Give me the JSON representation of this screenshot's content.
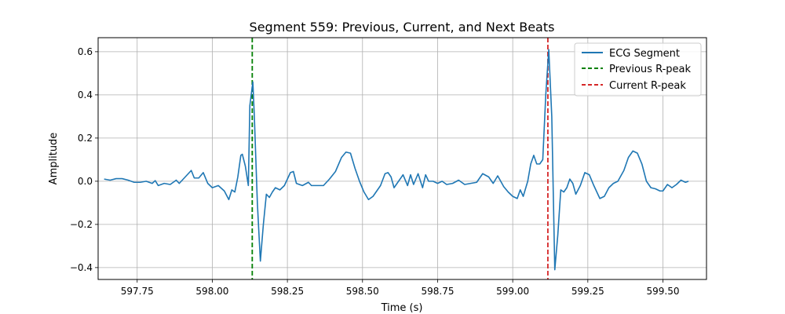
{
  "chart_data": {
    "type": "line",
    "title": "Segment 559: Previous, Current, and Next Beats",
    "xlabel": "Time (s)",
    "ylabel": "Amplitude",
    "xlim": [
      597.62,
      599.645
    ],
    "ylim": [
      -0.455,
      0.665
    ],
    "grid": true,
    "legend_position": "top-right",
    "xticks": [
      597.75,
      598.0,
      598.25,
      598.5,
      598.75,
      599.0,
      599.25,
      599.5
    ],
    "xtick_labels": [
      "597.75",
      "598.00",
      "598.25",
      "598.50",
      "598.75",
      "599.00",
      "599.25",
      "599.50"
    ],
    "yticks": [
      -0.4,
      -0.2,
      0.0,
      0.2,
      0.4,
      0.6
    ],
    "ytick_labels": [
      "−0.4",
      "−0.2",
      "0.0",
      "0.2",
      "0.4",
      "0.6"
    ],
    "series": [
      {
        "name": "ECG Segment",
        "color": "#1f77b4",
        "points": [
          [
            597.64,
            0.01
          ],
          [
            597.66,
            0.005
          ],
          [
            597.68,
            0.012
          ],
          [
            597.7,
            0.012
          ],
          [
            597.72,
            0.005
          ],
          [
            597.74,
            -0.005
          ],
          [
            597.76,
            -0.005
          ],
          [
            597.78,
            0.0
          ],
          [
            597.8,
            -0.01
          ],
          [
            597.81,
            0.003
          ],
          [
            597.82,
            -0.02
          ],
          [
            597.84,
            -0.01
          ],
          [
            597.86,
            -0.015
          ],
          [
            597.88,
            0.005
          ],
          [
            597.89,
            -0.01
          ],
          [
            597.91,
            0.02
          ],
          [
            597.93,
            0.05
          ],
          [
            597.94,
            0.015
          ],
          [
            597.955,
            0.015
          ],
          [
            597.97,
            0.04
          ],
          [
            597.985,
            -0.01
          ],
          [
            598.0,
            -0.03
          ],
          [
            598.02,
            -0.02
          ],
          [
            598.04,
            -0.045
          ],
          [
            598.055,
            -0.085
          ],
          [
            598.065,
            -0.04
          ],
          [
            598.075,
            -0.05
          ],
          [
            598.085,
            0.02
          ],
          [
            598.095,
            0.12
          ],
          [
            598.1,
            0.125
          ],
          [
            598.11,
            0.07
          ],
          [
            598.12,
            -0.02
          ],
          [
            598.125,
            0.35
          ],
          [
            598.135,
            0.46
          ],
          [
            598.14,
            0.3
          ],
          [
            598.15,
            -0.1
          ],
          [
            598.16,
            -0.37
          ],
          [
            598.17,
            -0.2
          ],
          [
            598.18,
            -0.06
          ],
          [
            598.19,
            -0.075
          ],
          [
            598.2,
            -0.05
          ],
          [
            598.21,
            -0.03
          ],
          [
            598.225,
            -0.04
          ],
          [
            598.24,
            -0.02
          ],
          [
            598.26,
            0.04
          ],
          [
            598.27,
            0.045
          ],
          [
            598.28,
            -0.01
          ],
          [
            598.3,
            -0.02
          ],
          [
            598.32,
            -0.005
          ],
          [
            598.33,
            -0.02
          ],
          [
            598.35,
            -0.02
          ],
          [
            598.37,
            -0.02
          ],
          [
            598.39,
            0.01
          ],
          [
            598.41,
            0.045
          ],
          [
            598.43,
            0.11
          ],
          [
            598.445,
            0.135
          ],
          [
            598.46,
            0.13
          ],
          [
            598.475,
            0.06
          ],
          [
            598.49,
            0.0
          ],
          [
            598.505,
            -0.05
          ],
          [
            598.52,
            -0.085
          ],
          [
            598.535,
            -0.07
          ],
          [
            598.55,
            -0.04
          ],
          [
            598.56,
            -0.02
          ],
          [
            598.575,
            0.035
          ],
          [
            598.585,
            0.04
          ],
          [
            598.595,
            0.02
          ],
          [
            598.605,
            -0.03
          ],
          [
            598.62,
            0.0
          ],
          [
            598.635,
            0.03
          ],
          [
            598.65,
            -0.02
          ],
          [
            598.66,
            0.03
          ],
          [
            598.67,
            -0.015
          ],
          [
            598.685,
            0.035
          ],
          [
            598.7,
            -0.03
          ],
          [
            598.71,
            0.03
          ],
          [
            598.72,
            0.0
          ],
          [
            598.735,
            0.0
          ],
          [
            598.75,
            -0.01
          ],
          [
            598.765,
            0.0
          ],
          [
            598.78,
            -0.015
          ],
          [
            598.8,
            -0.01
          ],
          [
            598.82,
            0.005
          ],
          [
            598.84,
            -0.015
          ],
          [
            598.86,
            -0.01
          ],
          [
            598.88,
            -0.005
          ],
          [
            598.9,
            0.035
          ],
          [
            598.92,
            0.02
          ],
          [
            598.935,
            -0.01
          ],
          [
            598.95,
            0.025
          ],
          [
            598.97,
            -0.025
          ],
          [
            598.985,
            -0.05
          ],
          [
            599.0,
            -0.07
          ],
          [
            599.015,
            -0.08
          ],
          [
            599.025,
            -0.04
          ],
          [
            599.035,
            -0.07
          ],
          [
            599.05,
            0.0
          ],
          [
            599.06,
            0.08
          ],
          [
            599.07,
            0.12
          ],
          [
            599.08,
            0.08
          ],
          [
            599.09,
            0.08
          ],
          [
            599.1,
            0.1
          ],
          [
            599.11,
            0.4
          ],
          [
            599.12,
            0.61
          ],
          [
            599.13,
            0.3
          ],
          [
            599.14,
            -0.41
          ],
          [
            599.15,
            -0.25
          ],
          [
            599.16,
            -0.04
          ],
          [
            599.17,
            -0.05
          ],
          [
            599.18,
            -0.03
          ],
          [
            599.19,
            0.01
          ],
          [
            599.2,
            -0.01
          ],
          [
            599.21,
            -0.06
          ],
          [
            599.225,
            -0.02
          ],
          [
            599.24,
            0.04
          ],
          [
            599.255,
            0.03
          ],
          [
            599.27,
            -0.02
          ],
          [
            599.29,
            -0.08
          ],
          [
            599.305,
            -0.07
          ],
          [
            599.32,
            -0.03
          ],
          [
            599.335,
            -0.01
          ],
          [
            599.35,
            0.0
          ],
          [
            599.37,
            0.05
          ],
          [
            599.385,
            0.11
          ],
          [
            599.4,
            0.14
          ],
          [
            599.415,
            0.13
          ],
          [
            599.43,
            0.08
          ],
          [
            599.445,
            0.0
          ],
          [
            599.46,
            -0.03
          ],
          [
            599.475,
            -0.035
          ],
          [
            599.49,
            -0.045
          ],
          [
            599.5,
            -0.045
          ],
          [
            599.515,
            -0.015
          ],
          [
            599.53,
            -0.03
          ],
          [
            599.545,
            -0.015
          ],
          [
            599.56,
            0.005
          ],
          [
            599.575,
            -0.005
          ],
          [
            599.585,
            0.0
          ]
        ]
      }
    ],
    "vlines": [
      {
        "name": "Previous R-peak",
        "x": 598.133,
        "color": "#008000",
        "style": "dashed"
      },
      {
        "name": "Current R-peak",
        "x": 599.117,
        "color": "#d62728",
        "style": "dashed"
      }
    ]
  }
}
